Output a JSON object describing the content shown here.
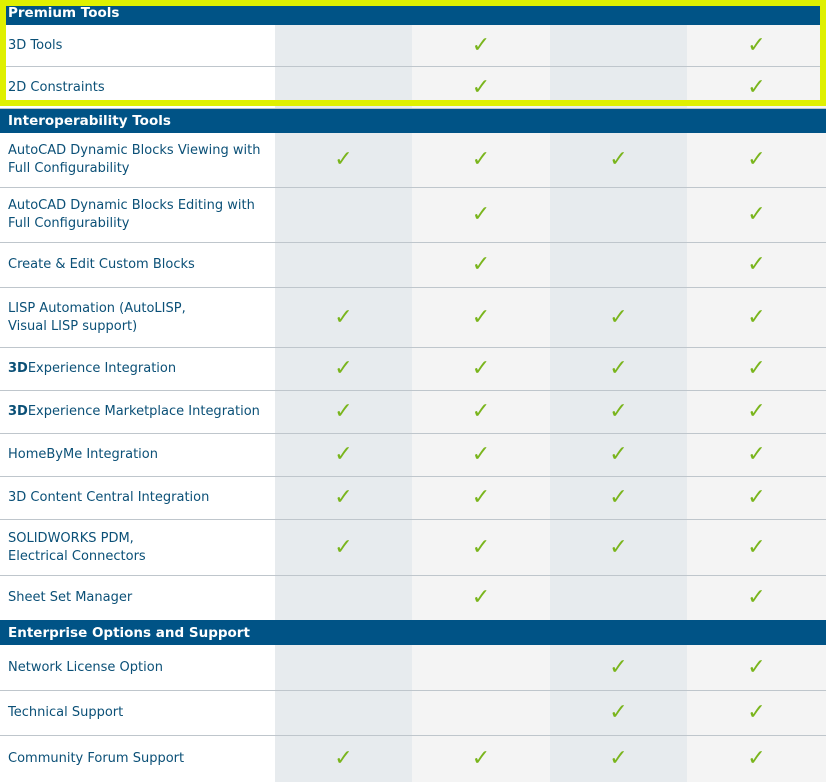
{
  "check_glyph": "✓",
  "check_color": "#7ab51d",
  "header_color": "#005386",
  "highlight_color": "#dff000",
  "sections": [
    {
      "title": "Premium Tools",
      "rows": [
        {
          "label": "3D Tools",
          "checks": [
            false,
            true,
            false,
            true
          ]
        },
        {
          "label": "2D Constraints",
          "checks": [
            false,
            true,
            false,
            true
          ]
        }
      ]
    },
    {
      "title": "Interoperability Tools",
      "rows": [
        {
          "label": "AutoCAD Dynamic Blocks Viewing with\nFull Configurability",
          "checks": [
            true,
            true,
            true,
            true
          ]
        },
        {
          "label": "AutoCAD Dynamic Blocks Editing with\nFull Configurability",
          "checks": [
            false,
            true,
            false,
            true
          ]
        },
        {
          "label": "Create & Edit Custom Blocks",
          "checks": [
            false,
            true,
            false,
            true
          ]
        },
        {
          "label": "LISP Automation (AutoLISP,\nVisual LISP support)",
          "checks": [
            true,
            true,
            true,
            true
          ]
        },
        {
          "label_bold": "3D",
          "label": "Experience Integration",
          "checks": [
            true,
            true,
            true,
            true
          ]
        },
        {
          "label_bold": "3D",
          "label": "Experience Marketplace Integration",
          "checks": [
            true,
            true,
            true,
            true
          ]
        },
        {
          "label": "HomeByMe Integration",
          "checks": [
            true,
            true,
            true,
            true
          ]
        },
        {
          "label": "3D Content Central Integration",
          "checks": [
            true,
            true,
            true,
            true
          ]
        },
        {
          "label": "SOLIDWORKS PDM,\nElectrical Connectors",
          "checks": [
            true,
            true,
            true,
            true
          ]
        },
        {
          "label": "Sheet Set Manager",
          "checks": [
            false,
            true,
            false,
            true
          ]
        }
      ]
    },
    {
      "title": "Enterprise Options and Support",
      "rows": [
        {
          "label": "Network License Option",
          "checks": [
            false,
            false,
            true,
            true
          ]
        },
        {
          "label": "Technical Support",
          "checks": [
            false,
            false,
            true,
            true
          ]
        },
        {
          "label": "Community Forum Support",
          "checks": [
            true,
            true,
            true,
            true
          ]
        }
      ]
    }
  ]
}
